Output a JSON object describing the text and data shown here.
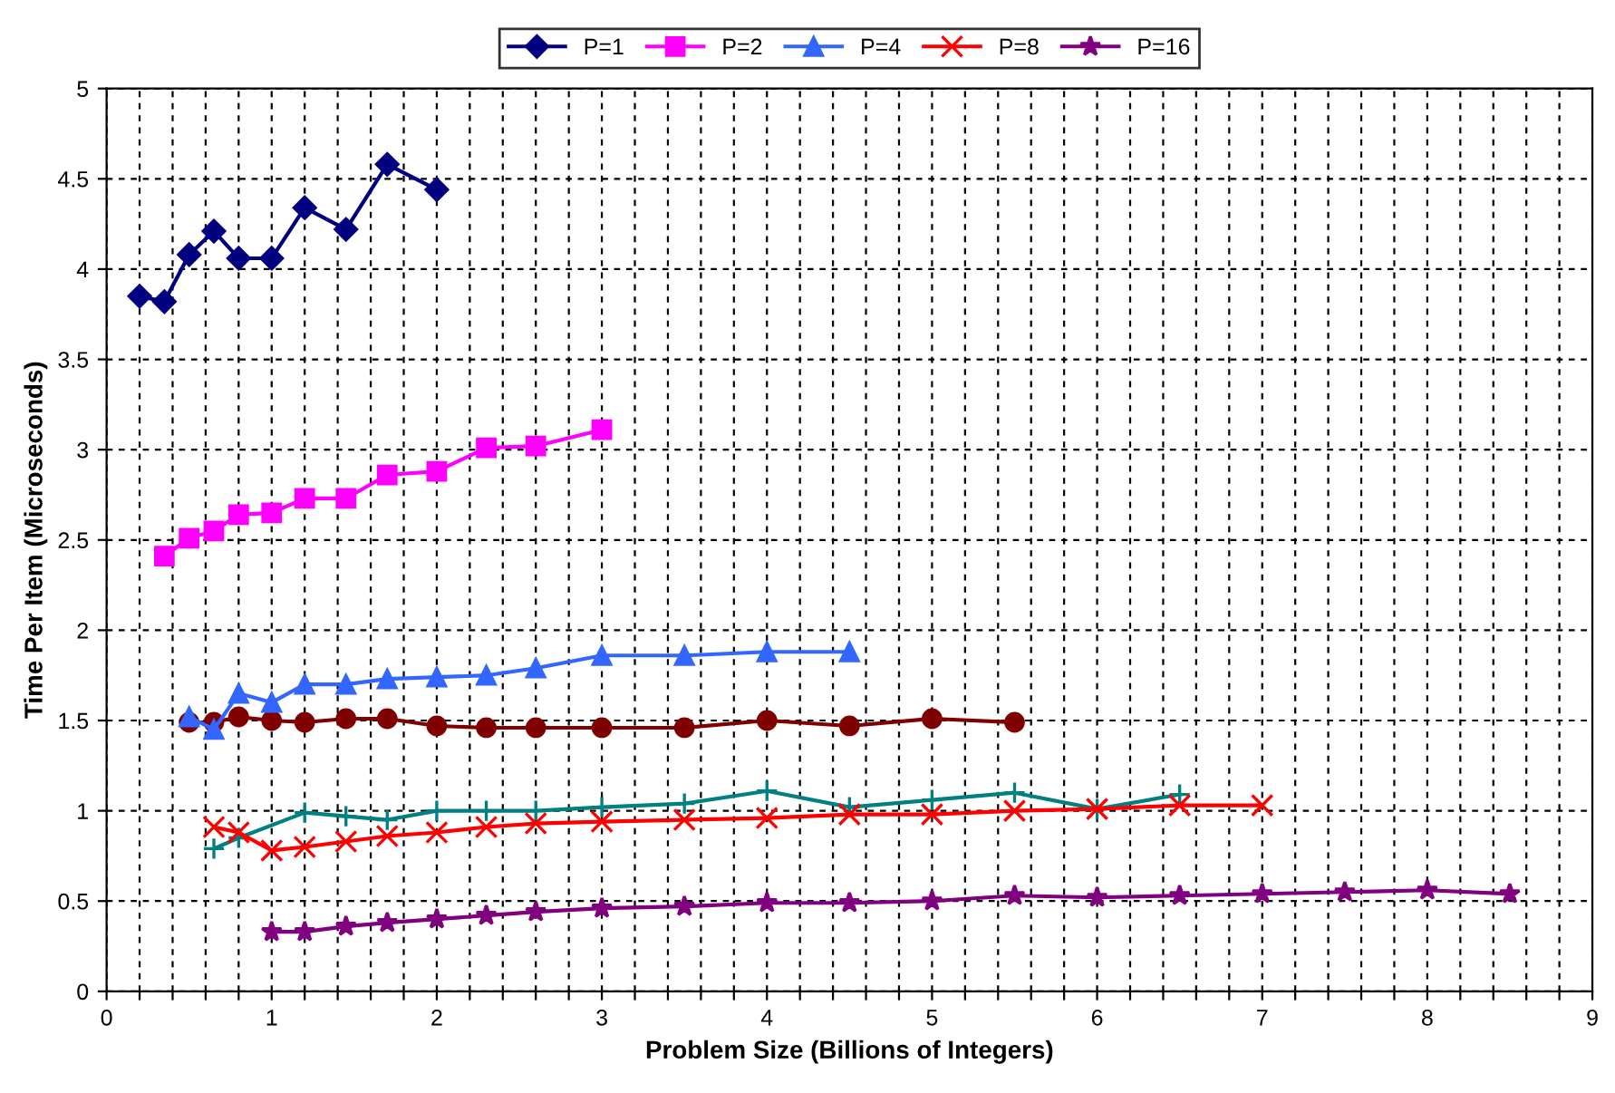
{
  "chart_data": {
    "type": "line",
    "xlabel": "Problem Size (Billions of Integers)",
    "ylabel": "Time Per Item (Microseconds)",
    "xlim": [
      0,
      9
    ],
    "ylim": [
      0,
      5
    ],
    "xticks": [
      0,
      {
        "value": 0.2,
        "label": null
      },
      {
        "value": 0.4,
        "label": null
      },
      {
        "value": 0.6,
        "label": null
      },
      {
        "value": 0.8,
        "label": null
      },
      1,
      {
        "value": 1.2,
        "label": null
      },
      {
        "value": 1.4,
        "label": null
      },
      {
        "value": 1.6,
        "label": null
      },
      {
        "value": 1.8,
        "label": null
      },
      2,
      {
        "value": 2.2,
        "label": null
      },
      {
        "value": 2.4,
        "label": null
      },
      {
        "value": 2.6,
        "label": null
      },
      {
        "value": 2.8,
        "label": null
      },
      3,
      {
        "value": 3.2,
        "label": null
      },
      {
        "value": 3.4,
        "label": null
      },
      {
        "value": 3.6,
        "label": null
      },
      {
        "value": 3.8,
        "label": null
      },
      4,
      {
        "value": 4.2,
        "label": null
      },
      {
        "value": 4.4,
        "label": null
      },
      {
        "value": 4.6,
        "label": null
      },
      {
        "value": 4.8,
        "label": null
      },
      5,
      {
        "value": 5.2,
        "label": null
      },
      {
        "value": 5.4,
        "label": null
      },
      {
        "value": 5.6,
        "label": null
      },
      {
        "value": 5.8,
        "label": null
      },
      6,
      {
        "value": 6.2,
        "label": null
      },
      {
        "value": 6.4,
        "label": null
      },
      {
        "value": 6.6,
        "label": null
      },
      {
        "value": 6.8,
        "label": null
      },
      7,
      {
        "value": 7.2,
        "label": null
      },
      {
        "value": 7.4,
        "label": null
      },
      {
        "value": 7.6,
        "label": null
      },
      {
        "value": 7.8,
        "label": null
      },
      8,
      {
        "value": 8.2,
        "label": null
      },
      {
        "value": 8.4,
        "label": null
      },
      {
        "value": 8.6,
        "label": null
      },
      {
        "value": 8.8,
        "label": null
      },
      9
    ],
    "yticks": [
      0,
      0.5,
      1,
      1.5,
      2,
      2.5,
      3,
      3.5,
      4,
      4.5,
      5
    ],
    "grid": true,
    "legend": "top",
    "line_style": "solid",
    "series": [
      {
        "name": "P=1",
        "color": "#000080",
        "marker": "diamond",
        "x": [
          0.2,
          0.35,
          0.5,
          0.65,
          0.8,
          1.0,
          1.2,
          1.45,
          1.7,
          2.0
        ],
        "values": [
          3.85,
          3.82,
          4.08,
          4.21,
          4.06,
          4.06,
          4.34,
          4.22,
          4.58,
          4.44
        ]
      },
      {
        "name": "P=2",
        "color": "#ff00ff",
        "marker": "square",
        "x": [
          0.35,
          0.5,
          0.65,
          0.8,
          1.0,
          1.2,
          1.45,
          1.7,
          2.0,
          2.3,
          2.6,
          3.0
        ],
        "values": [
          2.41,
          2.51,
          2.55,
          2.64,
          2.65,
          2.73,
          2.73,
          2.86,
          2.88,
          3.01,
          3.02,
          3.11
        ]
      },
      {
        "name": "P=4",
        "color": "#3366ff",
        "marker": "triangle",
        "x": [
          0.5,
          0.65,
          0.8,
          1.0,
          1.2,
          1.45,
          1.7,
          2.0,
          2.3,
          2.6,
          3.0,
          3.5,
          4.0,
          4.5
        ],
        "values": [
          1.52,
          1.45,
          1.65,
          1.6,
          1.7,
          1.7,
          1.73,
          1.74,
          1.75,
          1.79,
          1.86,
          1.86,
          1.88,
          1.88
        ]
      },
      {
        "name": "P=8",
        "color": "#ff0000",
        "marker": "cross",
        "x": [
          0.65,
          0.8,
          1.0,
          1.2,
          1.45,
          1.7,
          2.0,
          2.3,
          2.6,
          3.0,
          3.5,
          4.0,
          4.5,
          5.0,
          5.5,
          6.0,
          6.5,
          7.0
        ],
        "values": [
          0.91,
          0.88,
          0.78,
          0.8,
          0.83,
          0.86,
          0.88,
          0.91,
          0.93,
          0.94,
          0.95,
          0.96,
          0.98,
          0.98,
          1.0,
          1.01,
          1.03,
          1.03
        ]
      },
      {
        "name": "P=16",
        "color": "#800080",
        "marker": "star",
        "x": [
          1.0,
          1.2,
          1.45,
          1.7,
          2.0,
          2.3,
          2.6,
          3.0,
          3.5,
          4.0,
          4.5,
          5.0,
          5.5,
          6.0,
          6.5,
          7.0,
          7.5,
          8.0,
          8.5
        ],
        "values": [
          0.33,
          0.33,
          0.36,
          0.38,
          0.4,
          0.42,
          0.44,
          0.46,
          0.47,
          0.49,
          0.49,
          0.5,
          0.53,
          0.52,
          0.53,
          0.54,
          0.55,
          0.56,
          0.54
        ]
      },
      {
        "color": "#800000",
        "marker": "circle",
        "x": [
          0.5,
          0.65,
          0.8,
          1.0,
          1.2,
          1.45,
          1.7,
          2.0,
          2.3,
          2.6,
          3.0,
          3.5,
          4.0,
          4.5,
          5.0,
          5.5
        ],
        "values": [
          1.49,
          1.49,
          1.52,
          1.5,
          1.49,
          1.51,
          1.51,
          1.47,
          1.46,
          1.46,
          1.46,
          1.46,
          1.5,
          1.47,
          1.51,
          1.49
        ]
      },
      {
        "color": "#008080",
        "marker": "plus",
        "x": [
          0.65,
          0.8,
          1.2,
          1.45,
          1.7,
          2.0,
          2.3,
          2.6,
          3.0,
          3.5,
          4.0,
          4.5,
          5.0,
          5.5,
          6.0,
          6.5
        ],
        "values": [
          0.79,
          0.85,
          0.99,
          0.97,
          0.95,
          1.0,
          1.0,
          1.0,
          1.02,
          1.04,
          1.11,
          1.02,
          1.06,
          1.1,
          1.01,
          1.09
        ]
      }
    ]
  }
}
